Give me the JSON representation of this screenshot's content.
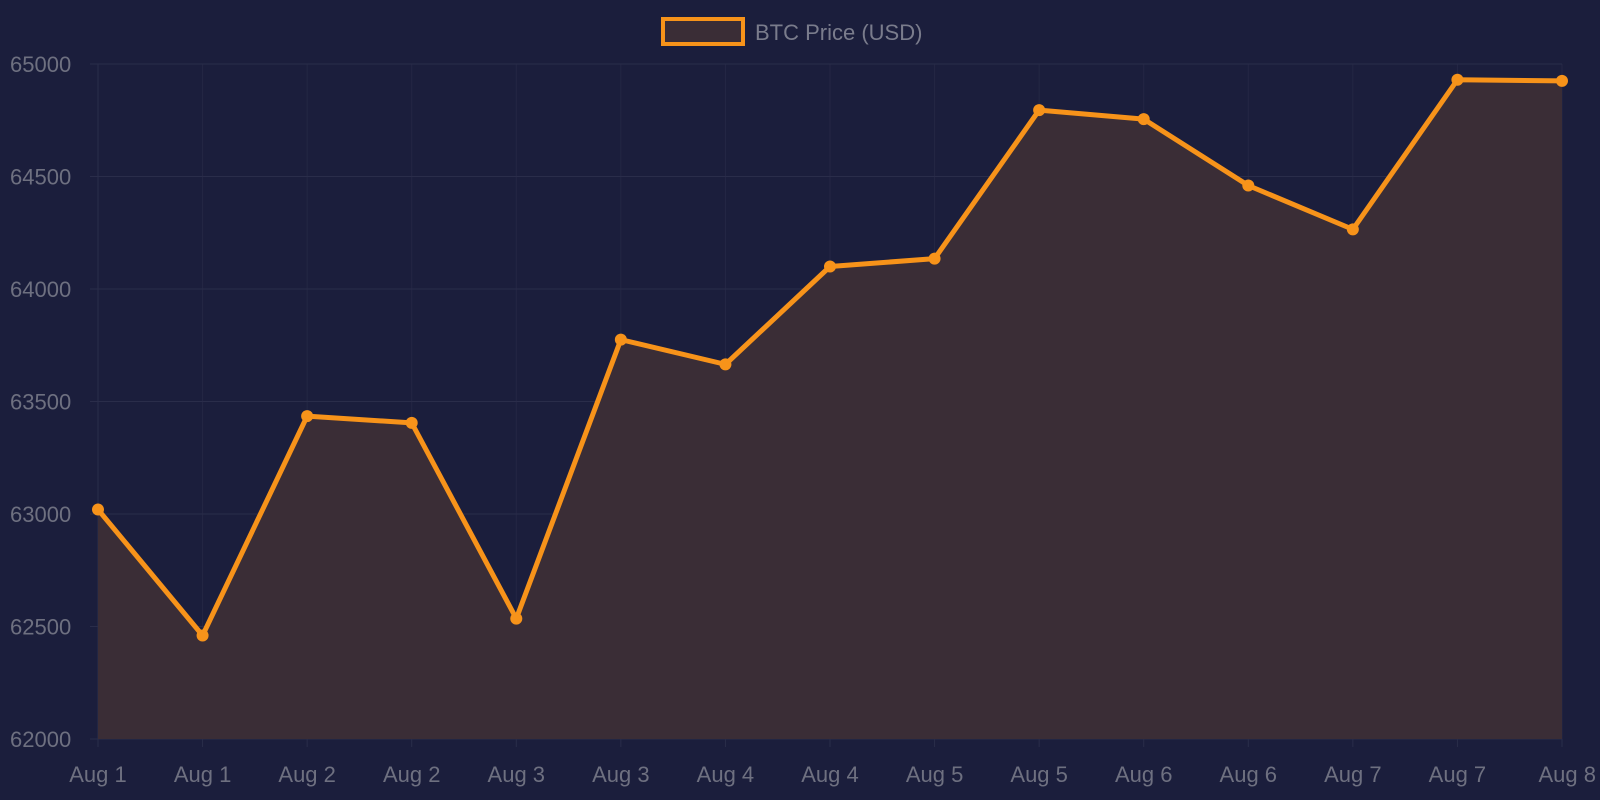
{
  "chart_data": {
    "type": "area",
    "legend": {
      "position": "top-center",
      "label": "BTC Price (USD)"
    },
    "colors": {
      "background": "#1b1e3c",
      "line": "#f7931a",
      "fill": "#3a2d36",
      "grid": "#2a2d4a",
      "tick_text": "#6e7080"
    },
    "series": [
      {
        "name": "BTC Price (USD)",
        "x": [
          "Aug 1",
          "Aug 1",
          "Aug 2",
          "Aug 2",
          "Aug 3",
          "Aug 3",
          "Aug 4",
          "Aug 4",
          "Aug 5",
          "Aug 5",
          "Aug 6",
          "Aug 6",
          "Aug 7",
          "Aug 7",
          "Aug 8"
        ],
        "values": [
          63020,
          62460,
          63435,
          63405,
          62535,
          63775,
          63665,
          64100,
          64135,
          64795,
          64755,
          64460,
          64265,
          64930,
          64925
        ]
      }
    ],
    "ylim": [
      62000,
      65000
    ],
    "yticks": [
      62000,
      62500,
      63000,
      63500,
      64000,
      64500,
      65000
    ],
    "grid": true,
    "title": "",
    "xlabel": "",
    "ylabel": ""
  }
}
